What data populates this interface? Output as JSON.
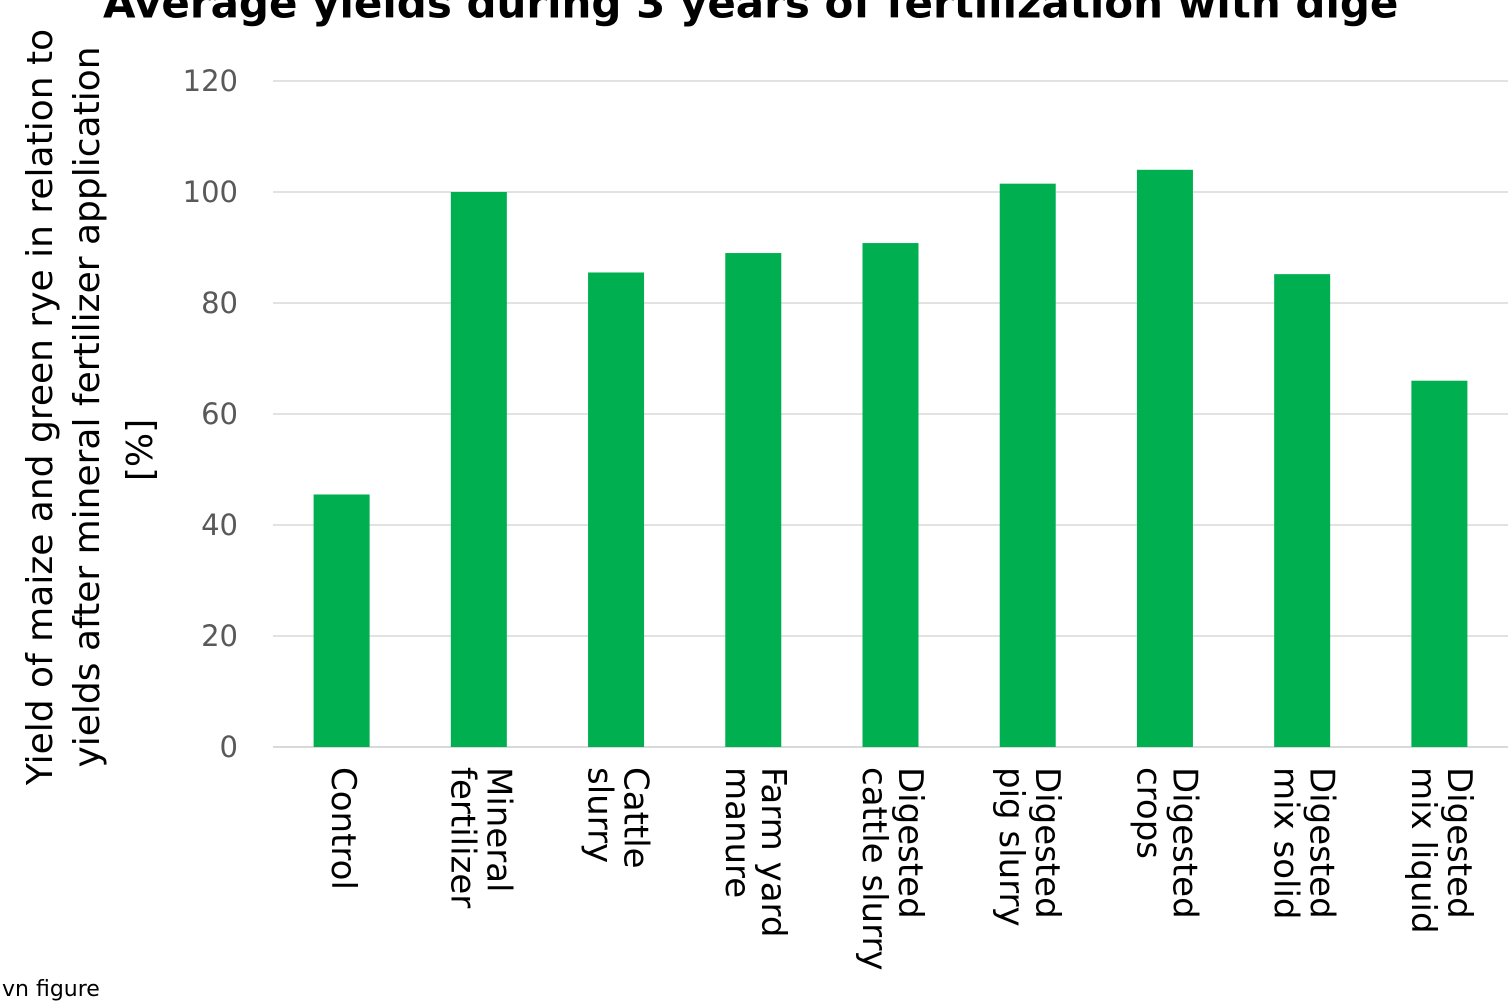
{
  "chart_data": {
    "type": "bar",
    "title": "Average yields during 3 years of fertilization with dige",
    "ylabel_lines": [
      "Yield of maize and green rye in relation to",
      "yields after mineral fertilizer application",
      "[%]"
    ],
    "categories": [
      [
        "Control"
      ],
      [
        "Mineral",
        "fertilizer"
      ],
      [
        "Cattle",
        "slurry"
      ],
      [
        "Farm yard",
        "manure"
      ],
      [
        "Digested",
        "cattle slurry"
      ],
      [
        "Digested",
        "pig slurry"
      ],
      [
        "Digested",
        "crops"
      ],
      [
        "Digested",
        "mix solid"
      ],
      [
        "Digested",
        "mix liquid"
      ]
    ],
    "values": [
      45.5,
      100,
      85.5,
      89,
      90.8,
      101.5,
      104,
      85.2,
      66
    ],
    "ylim": [
      0,
      120
    ],
    "yticks": [
      "0",
      "20",
      "40",
      "60",
      "80",
      "100",
      "120"
    ],
    "grid": true,
    "bar_color": "#00b050",
    "source_note": "vn figure"
  }
}
